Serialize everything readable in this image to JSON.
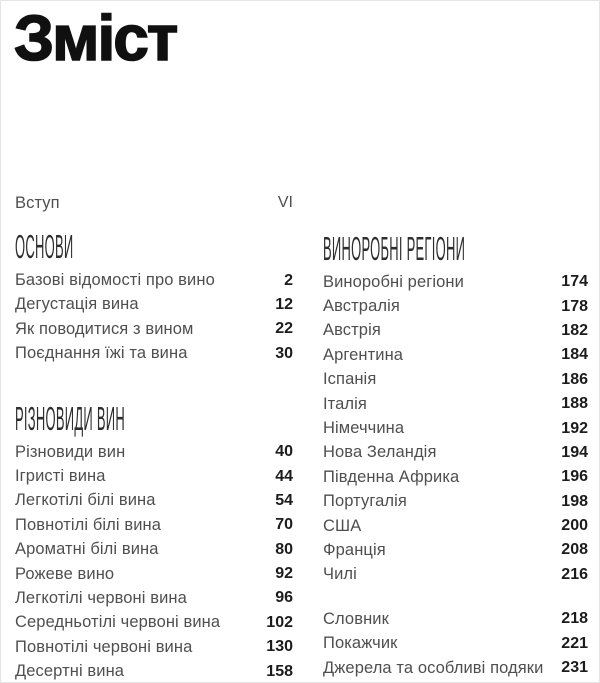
{
  "page_title": "Зміст",
  "intro": {
    "label": "Вступ",
    "page": "VI"
  },
  "columns": {
    "left": {
      "sections": [
        {
          "heading": "ОСНОВИ",
          "items": [
            {
              "label": "Базові відомості про вино",
              "page": "2"
            },
            {
              "label": "Дегустація вина",
              "page": "12"
            },
            {
              "label": "Як поводитися з вином",
              "page": "22"
            },
            {
              "label": "Поєднання їжі та вина",
              "page": "30"
            }
          ]
        },
        {
          "heading": "РІЗНОВИДИ ВИН",
          "items": [
            {
              "label": "Різновиди вин",
              "page": "40"
            },
            {
              "label": "Ігристі вина",
              "page": "44"
            },
            {
              "label": "Легкотілі білі вина",
              "page": "54"
            },
            {
              "label": "Повнотілі білі вина",
              "page": "70"
            },
            {
              "label": "Ароматні білі вина",
              "page": "80"
            },
            {
              "label": "Рожеве вино",
              "page": "92"
            },
            {
              "label": "Легкотілі червоні вина",
              "page": "96"
            },
            {
              "label": "Середньотілі червоні вина",
              "page": "102"
            },
            {
              "label": "Повнотілі червоні вина",
              "page": "130"
            },
            {
              "label": "Десертні вина",
              "page": "158"
            }
          ]
        }
      ]
    },
    "right": {
      "sections": [
        {
          "heading": "ВИНОРОБНІ РЕГІОНИ",
          "items": [
            {
              "label": "Виноробні регіони",
              "page": "174"
            },
            {
              "label": "Австралія",
              "page": "178"
            },
            {
              "label": "Австрія",
              "page": "182"
            },
            {
              "label": "Аргентина",
              "page": "184"
            },
            {
              "label": "Іспанія",
              "page": "186"
            },
            {
              "label": "Італія",
              "page": "188"
            },
            {
              "label": "Німеччина",
              "page": "192"
            },
            {
              "label": "Нова Зеландія",
              "page": "194"
            },
            {
              "label": "Південна Африка",
              "page": "196"
            },
            {
              "label": "Португалія",
              "page": "198"
            },
            {
              "label": "США",
              "page": "200"
            },
            {
              "label": "Франція",
              "page": "208"
            },
            {
              "label": "Чилі",
              "page": "216"
            }
          ]
        },
        {
          "heading": "",
          "items": [
            {
              "label": "Словник",
              "page": "218"
            },
            {
              "label": "Покажчик",
              "page": "221"
            },
            {
              "label": "Джерела та особливі подяки",
              "page": "231"
            }
          ]
        }
      ]
    }
  },
  "colors": {
    "background": "#ffffff",
    "title": "#101010",
    "heading": "#2e2e2e",
    "label": "#4f4f4f",
    "page_number": "#1c1c1c",
    "border": "#e4e4e4"
  }
}
